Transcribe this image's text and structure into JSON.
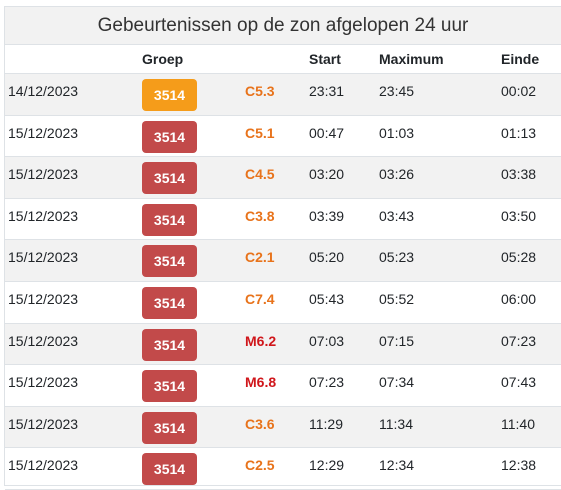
{
  "title": "Gebeurtenissen op de zon afgelopen 24 uur",
  "headers": {
    "date": "",
    "group": "Groep",
    "class": "",
    "start": "Start",
    "max": "Maximum",
    "end": "Einde"
  },
  "rows": [
    {
      "date": "14/12/2023",
      "group": "3514",
      "group_color": "#f59c1a",
      "class": "C5.3",
      "class_color": "#e8731b",
      "start": "23:31",
      "max": "23:45",
      "end": "00:02"
    },
    {
      "date": "15/12/2023",
      "group": "3514",
      "group_color": "#c24a4a",
      "class": "C5.1",
      "class_color": "#e8731b",
      "start": "00:47",
      "max": "01:03",
      "end": "01:13"
    },
    {
      "date": "15/12/2023",
      "group": "3514",
      "group_color": "#c24a4a",
      "class": "C4.5",
      "class_color": "#e8731b",
      "start": "03:20",
      "max": "03:26",
      "end": "03:38"
    },
    {
      "date": "15/12/2023",
      "group": "3514",
      "group_color": "#c24a4a",
      "class": "C3.8",
      "class_color": "#e8731b",
      "start": "03:39",
      "max": "03:43",
      "end": "03:50"
    },
    {
      "date": "15/12/2023",
      "group": "3514",
      "group_color": "#c24a4a",
      "class": "C2.1",
      "class_color": "#e8731b",
      "start": "05:20",
      "max": "05:23",
      "end": "05:28"
    },
    {
      "date": "15/12/2023",
      "group": "3514",
      "group_color": "#c24a4a",
      "class": "C7.4",
      "class_color": "#e8731b",
      "start": "05:43",
      "max": "05:52",
      "end": "06:00"
    },
    {
      "date": "15/12/2023",
      "group": "3514",
      "group_color": "#c24a4a",
      "class": "M6.2",
      "class_color": "#d0161b",
      "start": "07:03",
      "max": "07:15",
      "end": "07:23"
    },
    {
      "date": "15/12/2023",
      "group": "3514",
      "group_color": "#c24a4a",
      "class": "M6.8",
      "class_color": "#d0161b",
      "start": "07:23",
      "max": "07:34",
      "end": "07:43"
    },
    {
      "date": "15/12/2023",
      "group": "3514",
      "group_color": "#c24a4a",
      "class": "C3.6",
      "class_color": "#e8731b",
      "start": "11:29",
      "max": "11:34",
      "end": "11:40"
    },
    {
      "date": "15/12/2023",
      "group": "3514",
      "group_color": "#c24a4a",
      "class": "C2.5",
      "class_color": "#e8731b",
      "start": "12:29",
      "max": "12:34",
      "end": "12:38"
    }
  ]
}
